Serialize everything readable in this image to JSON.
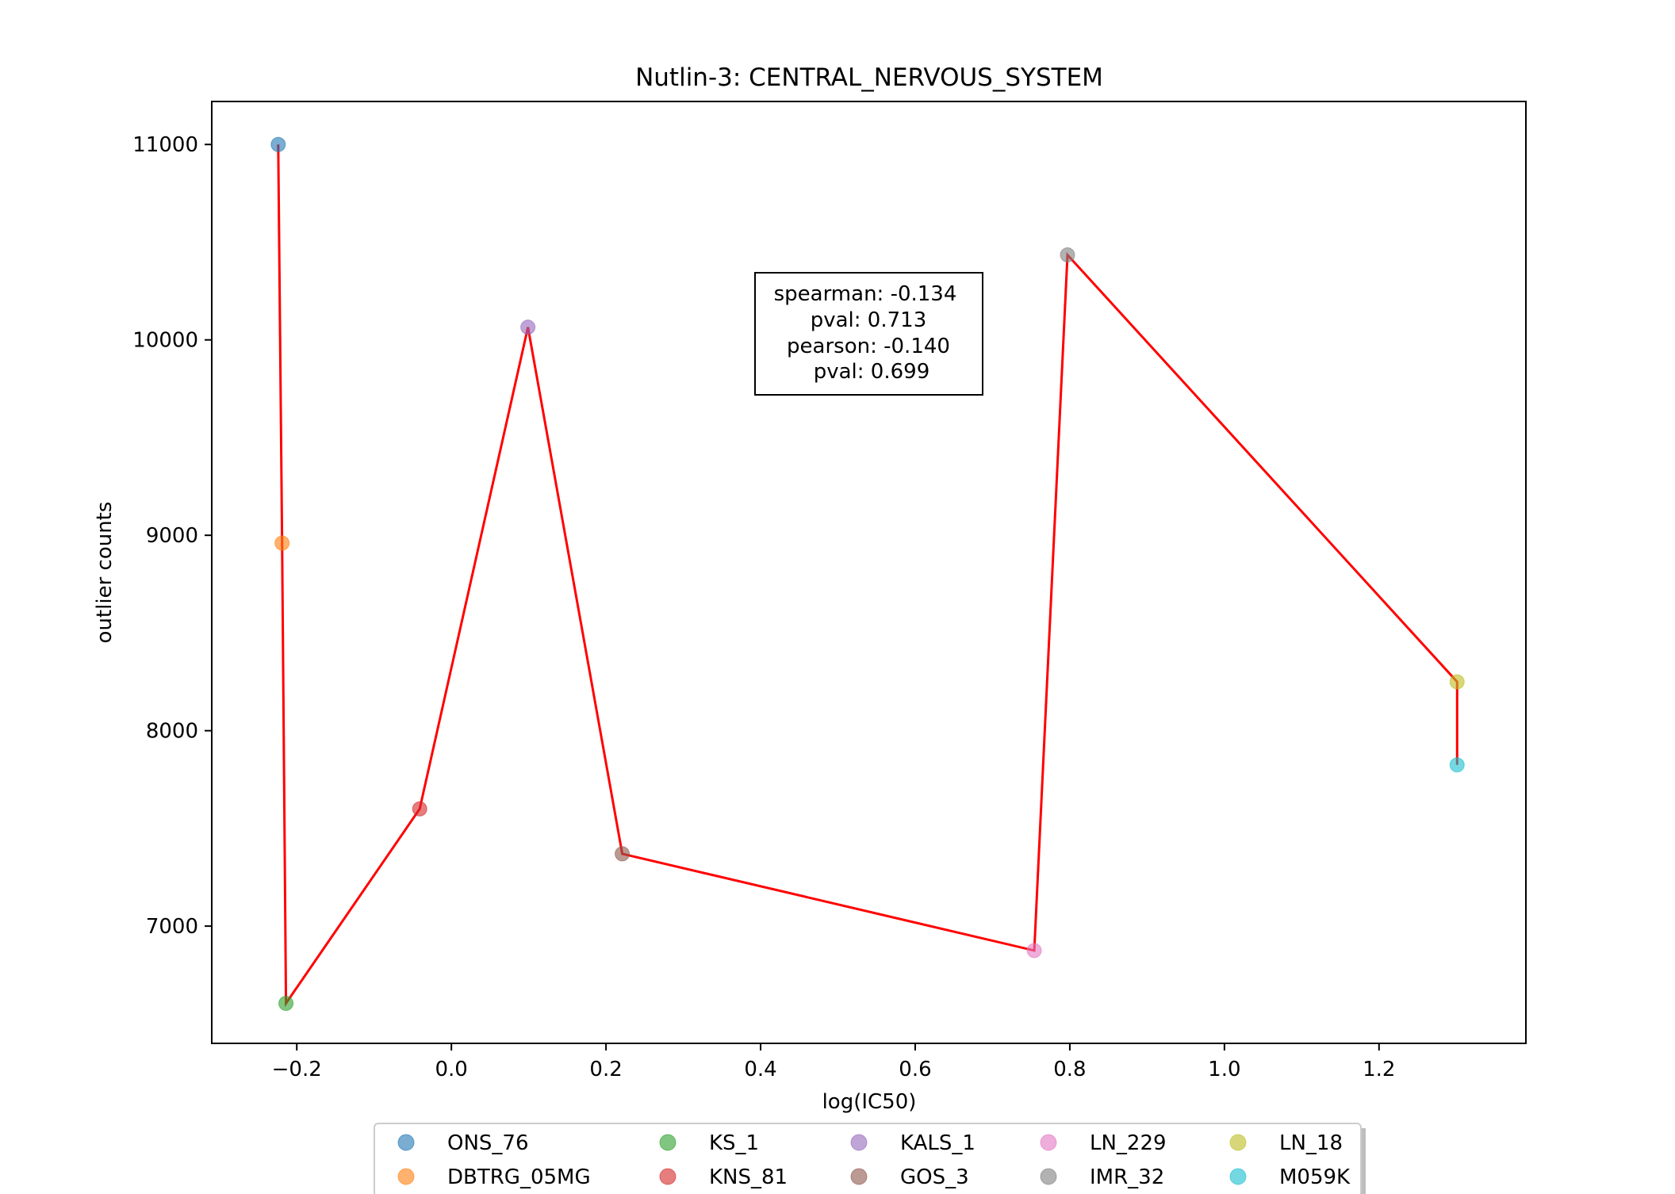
{
  "chart_data": {
    "type": "scatter",
    "title": "Nutlin-3: CENTRAL_NERVOUS_SYSTEM",
    "xlabel": "log(IC50)",
    "ylabel": "outlier counts",
    "xlim": [
      -0.31,
      1.39
    ],
    "ylim": [
      6400,
      11220
    ],
    "xticks": [
      -0.2,
      0.0,
      0.2,
      0.4,
      0.6,
      0.8,
      1.0,
      1.2
    ],
    "xtick_labels": [
      "−0.2",
      "0.0",
      "0.2",
      "0.4",
      "0.6",
      "0.8",
      "1.0",
      "1.2"
    ],
    "yticks": [
      7000,
      8000,
      9000,
      10000,
      11000
    ],
    "ytick_labels": [
      "7000",
      "8000",
      "9000",
      "10000",
      "11000"
    ],
    "grid": false,
    "legend_position": "bottom-center",
    "series": [
      {
        "name": "ONS_76",
        "color": "#1f77b4",
        "x": -0.224,
        "y": 11000
      },
      {
        "name": "DBTRG_05MG",
        "color": "#ff7f0e",
        "x": -0.219,
        "y": 8960
      },
      {
        "name": "KS_1",
        "color": "#2ca02c",
        "x": -0.214,
        "y": 6605
      },
      {
        "name": "KNS_81",
        "color": "#d62728",
        "x": -0.041,
        "y": 7600
      },
      {
        "name": "KALS_1",
        "color": "#9467bd",
        "x": 0.099,
        "y": 10065
      },
      {
        "name": "GOS_3",
        "color": "#8c564b",
        "x": 0.221,
        "y": 7370
      },
      {
        "name": "LN_229",
        "color": "#e377c2",
        "x": 0.754,
        "y": 6875
      },
      {
        "name": "IMR_32",
        "color": "#7f7f7f",
        "x": 0.797,
        "y": 10435
      },
      {
        "name": "LN_18",
        "color": "#bcbd22",
        "x": 1.301,
        "y": 8250
      },
      {
        "name": "M059K",
        "color": "#17becf",
        "x": 1.301,
        "y": 7825
      }
    ],
    "fit_line": {
      "color": "#ff0000",
      "order": [
        "ONS_76",
        "DBTRG_05MG",
        "KS_1",
        "KNS_81",
        "KALS_1",
        "GOS_3",
        "LN_229",
        "IMR_32",
        "LN_18",
        "M059K"
      ]
    },
    "stats_box": {
      "lines": [
        "spearman: -0.134",
        "pval: 0.713",
        "pearson: -0.140",
        "pval: 0.699"
      ]
    }
  }
}
